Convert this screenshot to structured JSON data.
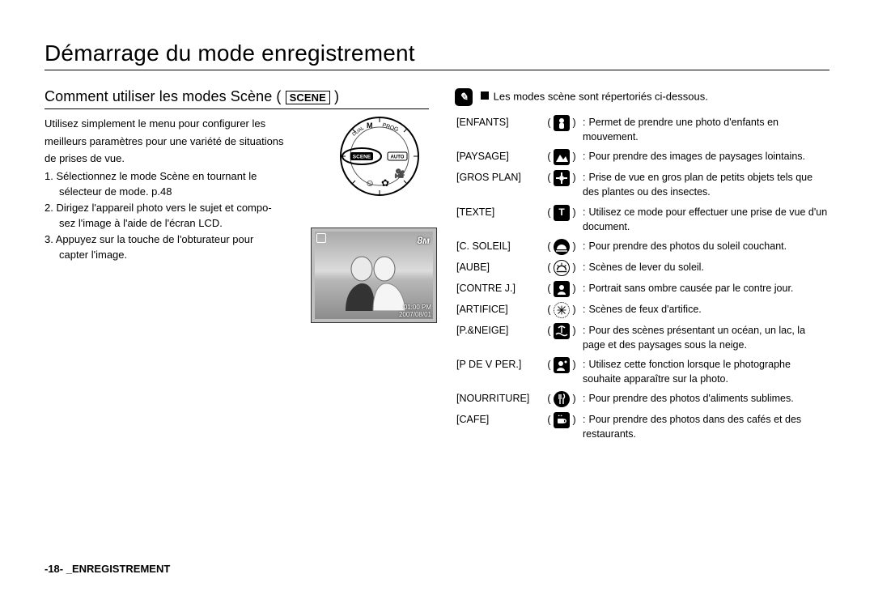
{
  "page": {
    "title": "Démarrage du mode enregistrement",
    "footer": "-18- _ENREGISTREMENT"
  },
  "left": {
    "subtitle_prefix": "Comment utiliser les modes Scène ( ",
    "subtitle_badge": "SCENE",
    "subtitle_suffix": " )",
    "intro_l1": "Utilisez simplement le menu pour configurer les",
    "intro_l2": "meilleurs paramètres pour une variété de situations",
    "intro_l3": "de prises de vue.",
    "step1_l1": "1. Sélectionnez le mode Scène en tournant le",
    "step1_l2": "sélecteur de mode. p.48",
    "step2_l1": "2. Dirigez l'appareil photo vers le sujet et compo-",
    "step2_l2": "sez l'image à l'aide de l'écran LCD.",
    "step3_l1": "3. Appuyez sur la touche de l'obturateur pour",
    "step3_l2": "capter l'image.",
    "preview": {
      "badge": "8м",
      "time": "01:00 PM",
      "date": "2007/08/01"
    },
    "dial": {
      "scene_label": "SCENE",
      "auto_label": "AUTO",
      "m_label": "M",
      "prog_label": "PROG",
      "dual_label": "DUAL"
    }
  },
  "right": {
    "header": "Les modes scène sont répertoriés ci-dessous.",
    "rows": [
      {
        "label": "[ENFANTS]",
        "icon": "child",
        "desc": "Permet de prendre une photo d'enfants en mouvement."
      },
      {
        "label": "[PAYSAGE]",
        "icon": "land",
        "desc": "Pour prendre des images de paysages lointains."
      },
      {
        "label": "[GROS PLAN]",
        "icon": "macro",
        "desc": "Prise de vue en gros plan de petits objets tels que des plantes ou des insectes."
      },
      {
        "label": "[TEXTE]",
        "icon": "text",
        "desc": "Utilisez ce mode pour effectuer une prise de vue d'un document."
      },
      {
        "label": "[C. SOLEIL]",
        "icon": "sunset",
        "desc": "Pour prendre des photos du soleil couchant."
      },
      {
        "label": "[AUBE]",
        "icon": "dawn",
        "desc": "Scènes de lever du soleil."
      },
      {
        "label": "[CONTRE J.]",
        "icon": "backlit",
        "desc": "Portrait sans ombre causée par le contre jour."
      },
      {
        "label": "[ARTIFICE]",
        "icon": "firework",
        "desc": "Scènes de feux d'artifice."
      },
      {
        "label": "[P.&NEIGE]",
        "icon": "beach",
        "desc": "Pour des scènes présentant un océan, un lac, la page et des paysages sous la neige."
      },
      {
        "label": "[P DE V PER.]",
        "icon": "self",
        "desc": "Utilisez cette fonction lorsque le photographe souhaite apparaître sur la photo."
      },
      {
        "label": "[NOURRITURE]",
        "icon": "food",
        "desc": "Pour prendre des photos d'aliments sublimes."
      },
      {
        "label": "[CAFE]",
        "icon": "cafe",
        "desc": "Pour prendre des photos dans des cafés et des restaurants."
      }
    ]
  }
}
